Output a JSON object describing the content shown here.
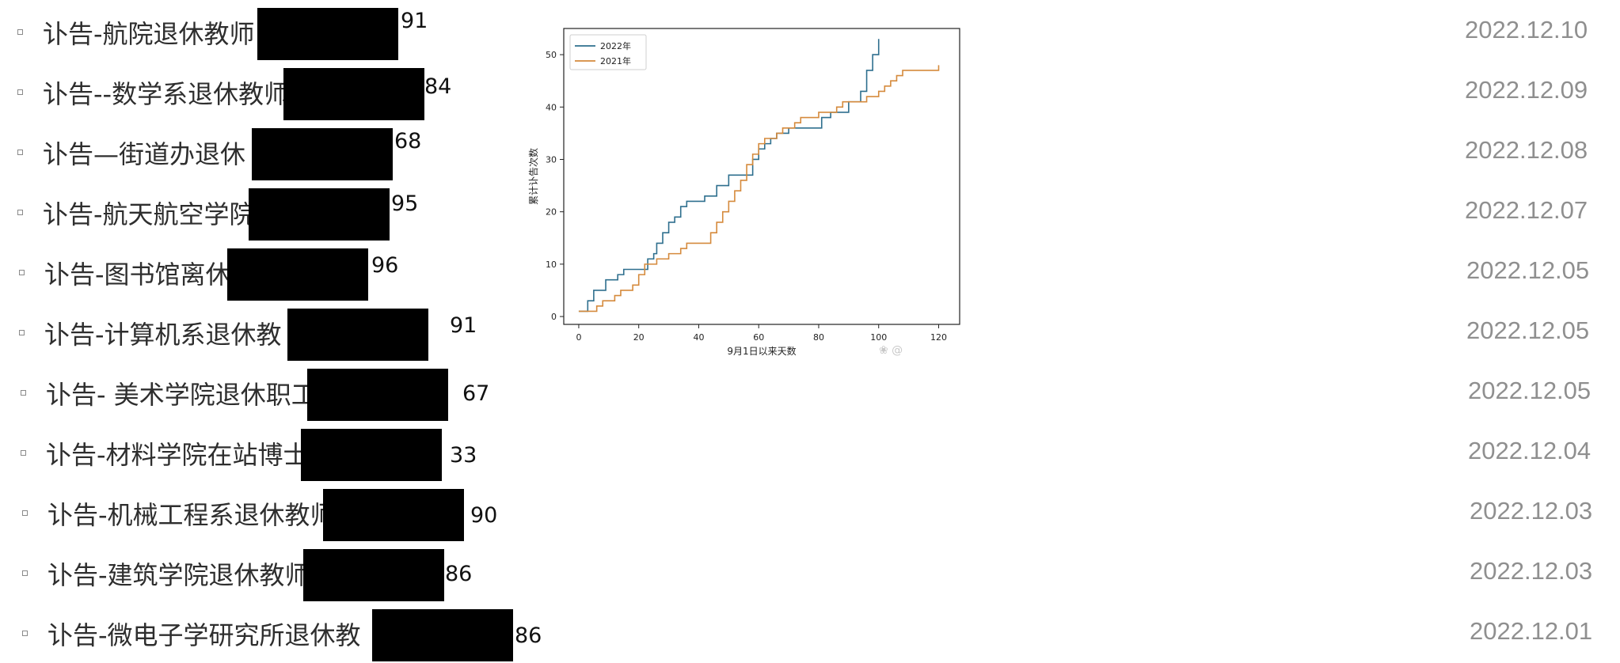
{
  "items": [
    {
      "title": "讣告-航院退休教师",
      "age": "91",
      "date": "2022.12.10"
    },
    {
      "title": "讣告--数学系退休教师",
      "age": "84",
      "date": "2022.12.09"
    },
    {
      "title": "讣告—街道办退休",
      "age": "68",
      "date": "2022.12.08"
    },
    {
      "title": "讣告-航天航空学院",
      "age": "95",
      "date": "2022.12.07"
    },
    {
      "title": "讣告-图书馆离休",
      "age": "96",
      "date": "2022.12.05"
    },
    {
      "title": "讣告-计算机系退休教",
      "age": "91",
      "date": "2022.12.05"
    },
    {
      "title": "讣告- 美术学院退休职工",
      "age": "67",
      "date": "2022.12.05"
    },
    {
      "title": "讣告-材料学院在站博士",
      "age": "33",
      "date": "2022.12.04"
    },
    {
      "title": "讣告-机械工程系退休教师",
      "age": "90",
      "date": "2022.12.03"
    },
    {
      "title": "讣告-建筑学院退休教师",
      "age": "86",
      "date": "2022.12.03"
    },
    {
      "title": "讣告-微电子学研究所退休教",
      "age": "86",
      "date": "2022.12.01"
    }
  ],
  "colors": {
    "series_2022": "#2e6f8e",
    "series_2021": "#d58a3c",
    "redaction": "#000000",
    "date_text": "#8f8f8f"
  },
  "chart_data": {
    "type": "line",
    "title": "",
    "xlabel": "9月1日以来天数",
    "ylabel": "累计讣告次数",
    "xlim": [
      -5,
      127
    ],
    "ylim": [
      -1.5,
      55
    ],
    "xticks": [
      0,
      20,
      40,
      60,
      80,
      100,
      120
    ],
    "yticks": [
      0,
      10,
      20,
      30,
      40,
      50
    ],
    "grid": false,
    "legend_position": "top-left",
    "series": [
      {
        "name": "2022年",
        "color": "#2e6f8e",
        "points": [
          [
            0,
            1
          ],
          [
            2,
            1
          ],
          [
            3,
            3
          ],
          [
            5,
            5
          ],
          [
            8,
            5
          ],
          [
            9,
            7
          ],
          [
            12,
            7
          ],
          [
            13,
            8
          ],
          [
            15,
            9
          ],
          [
            22,
            9
          ],
          [
            23,
            11
          ],
          [
            25,
            12
          ],
          [
            26,
            14
          ],
          [
            28,
            16
          ],
          [
            30,
            18
          ],
          [
            32,
            19
          ],
          [
            34,
            21
          ],
          [
            36,
            22
          ],
          [
            40,
            22
          ],
          [
            42,
            23
          ],
          [
            46,
            25
          ],
          [
            48,
            25
          ],
          [
            50,
            27
          ],
          [
            56,
            27
          ],
          [
            58,
            30
          ],
          [
            60,
            32
          ],
          [
            62,
            33
          ],
          [
            64,
            34
          ],
          [
            66,
            35
          ],
          [
            70,
            36
          ],
          [
            80,
            36
          ],
          [
            81,
            38
          ],
          [
            84,
            39
          ],
          [
            88,
            39
          ],
          [
            90,
            41
          ],
          [
            94,
            43
          ],
          [
            96,
            47
          ],
          [
            98,
            50
          ],
          [
            100,
            53
          ]
        ]
      },
      {
        "name": "2021年",
        "color": "#d58a3c",
        "points": [
          [
            0,
            1
          ],
          [
            4,
            1
          ],
          [
            6,
            2
          ],
          [
            8,
            3
          ],
          [
            12,
            4
          ],
          [
            14,
            5
          ],
          [
            18,
            6
          ],
          [
            20,
            8
          ],
          [
            22,
            10
          ],
          [
            26,
            11
          ],
          [
            30,
            12
          ],
          [
            34,
            13
          ],
          [
            36,
            14
          ],
          [
            42,
            14
          ],
          [
            44,
            16
          ],
          [
            46,
            18
          ],
          [
            48,
            20
          ],
          [
            50,
            22
          ],
          [
            52,
            24
          ],
          [
            54,
            26
          ],
          [
            56,
            29
          ],
          [
            58,
            31
          ],
          [
            60,
            33
          ],
          [
            62,
            34
          ],
          [
            66,
            35
          ],
          [
            68,
            36
          ],
          [
            72,
            37
          ],
          [
            74,
            38
          ],
          [
            78,
            38
          ],
          [
            80,
            39
          ],
          [
            84,
            39
          ],
          [
            86,
            40
          ],
          [
            88,
            41
          ],
          [
            94,
            41
          ],
          [
            96,
            42
          ],
          [
            100,
            43
          ],
          [
            102,
            44
          ],
          [
            104,
            45
          ],
          [
            106,
            46
          ],
          [
            108,
            47
          ],
          [
            112,
            47
          ],
          [
            116,
            47
          ],
          [
            120,
            48
          ]
        ]
      }
    ]
  }
}
